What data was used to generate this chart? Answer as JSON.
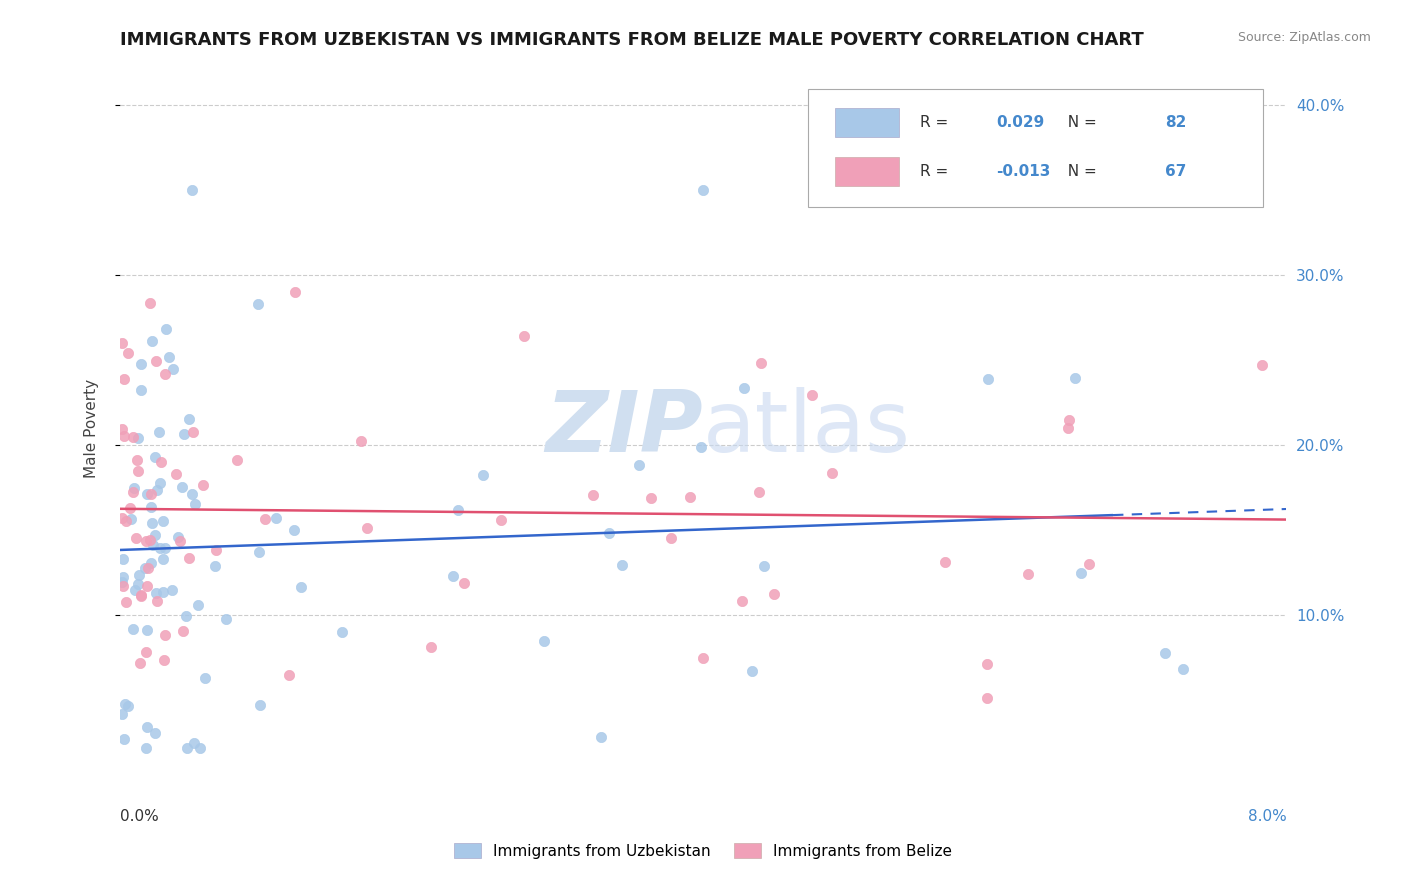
{
  "title": "IMMIGRANTS FROM UZBEKISTAN VS IMMIGRANTS FROM BELIZE MALE POVERTY CORRELATION CHART",
  "source": "Source: ZipAtlas.com",
  "ylabel": "Male Poverty",
  "uzb_color": "#a8c8e8",
  "blz_color": "#f0a0b8",
  "uzb_line_color": "#3366cc",
  "blz_line_color": "#e05070",
  "background_color": "#ffffff",
  "grid_color": "#cccccc",
  "xlim": [
    0.0,
    0.08
  ],
  "ylim": [
    0.0,
    0.42
  ],
  "ytick_vals": [
    0.1,
    0.2,
    0.3,
    0.4
  ],
  "ytick_labels": [
    "10.0%",
    "20.0%",
    "30.0%",
    "40.0%"
  ],
  "uzb_R": "0.029",
  "uzb_N": "82",
  "blz_R": "-0.013",
  "blz_N": "67",
  "stat_color": "#4488cc",
  "uzb_label": "Immigrants from Uzbekistan",
  "blz_label": "Immigrants from Belize"
}
